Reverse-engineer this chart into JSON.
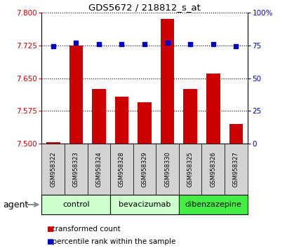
{
  "title": "GDS5672 / 218812_s_at",
  "samples": [
    "GSM958322",
    "GSM958323",
    "GSM958324",
    "GSM958328",
    "GSM958329",
    "GSM958330",
    "GSM958325",
    "GSM958326",
    "GSM958327"
  ],
  "transformed_count": [
    7.503,
    7.725,
    7.625,
    7.608,
    7.595,
    7.785,
    7.625,
    7.66,
    7.545
  ],
  "percentile_rank": [
    74,
    77,
    76,
    76,
    76,
    77,
    76,
    76,
    74
  ],
  "ylim_left": [
    7.5,
    7.8
  ],
  "ylim_right": [
    0,
    100
  ],
  "yticks_left": [
    7.5,
    7.575,
    7.65,
    7.725,
    7.8
  ],
  "yticks_right": [
    0,
    25,
    50,
    75,
    100
  ],
  "ytick_labels_right": [
    "0",
    "25",
    "50",
    "75",
    "100%"
  ],
  "bar_color": "#cc0000",
  "dot_color": "#0000cc",
  "grid_color": "#000000",
  "agent_groups": [
    {
      "label": "control",
      "start": 0,
      "end": 3,
      "color": "#ccffcc"
    },
    {
      "label": "bevacizumab",
      "start": 3,
      "end": 6,
      "color": "#ccffcc"
    },
    {
      "label": "dibenzazepine",
      "start": 6,
      "end": 9,
      "color": "#44ee44"
    }
  ],
  "legend_bar_label": "transformed count",
  "legend_dot_label": "percentile rank within the sample",
  "xlabel_agent": "agent",
  "bar_width": 0.6,
  "fig_bg": "#ffffff",
  "plot_bg": "#ffffff",
  "tick_color_left": "#cc0000",
  "tick_color_right": "#0000cc",
  "sample_bg": "#d3d3d3"
}
